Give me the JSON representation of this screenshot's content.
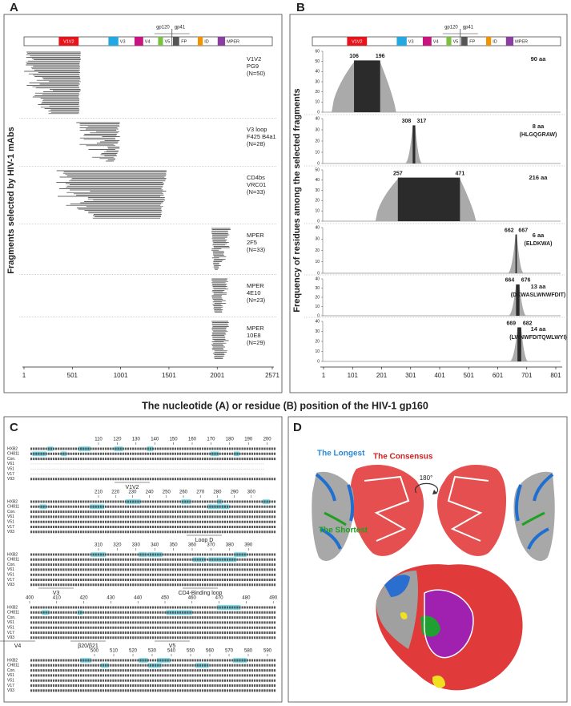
{
  "figure": {
    "xlabel": "The nucleotide (A) or residue (B) position of the HIV-1 gp160",
    "genome": {
      "regions": [
        "V1V2",
        "V3",
        "V4",
        "V5",
        "ID",
        "MPER"
      ],
      "gp120": "gp120",
      "gp41": "gp41",
      "fp": "FP"
    },
    "A": {
      "label": "A",
      "ylabel": "Fragments selected by HIV-1 mAbs",
      "xticks": [
        1,
        501,
        1001,
        1501,
        2001,
        2571
      ],
      "xlim": [
        1,
        2571
      ],
      "groups": [
        {
          "epitope": "V1V2",
          "mab": "PG9",
          "n": "(N=50)"
        },
        {
          "epitope": "V3 loop",
          "mab": "F425 B4a1",
          "n": "(N=28)"
        },
        {
          "epitope": "CD4bs",
          "mab": "VRC01",
          "n": "(N=33)"
        },
        {
          "epitope": "MPER",
          "mab": "2F5",
          "n": "(N=33)"
        },
        {
          "epitope": "MPER",
          "mab": "4E10",
          "n": "(N=23)"
        },
        {
          "epitope": "MPER",
          "mab": "10E8",
          "n": "(N=29)"
        }
      ]
    },
    "B": {
      "label": "B",
      "ylabel": "Frequency of residues among the selected fragments",
      "xticks": [
        1,
        101,
        201,
        301,
        401,
        501,
        601,
        701,
        801
      ],
      "xlim": [
        1,
        801
      ],
      "panels": [
        {
          "start": 106,
          "end": 196,
          "length": "90 aa",
          "ylim": [
            0,
            60
          ],
          "yticks": [
            0,
            10,
            20,
            30,
            40,
            50,
            60
          ]
        },
        {
          "start": 308,
          "end": 317,
          "length": "8 aa",
          "peptide": "(HLGQGRAW)",
          "ylim": [
            0,
            40
          ],
          "yticks": [
            0,
            10,
            20,
            30,
            40
          ]
        },
        {
          "start": 257,
          "end": 471,
          "length": "216 aa",
          "ylim": [
            0,
            50
          ],
          "yticks": [
            0,
            10,
            20,
            30,
            40,
            50
          ]
        },
        {
          "start": 662,
          "end": 667,
          "length": "6 aa",
          "peptide": "(ELDKWA)",
          "ylim": [
            0,
            40
          ],
          "yticks": [
            0,
            10,
            20,
            30,
            40
          ]
        },
        {
          "start": 664,
          "end": 676,
          "length": "13 aa",
          "peptide": "(DKWASLWNWFDIT)",
          "ylim": [
            0,
            40
          ],
          "yticks": [
            0,
            10,
            20,
            30,
            40
          ]
        },
        {
          "start": 669,
          "end": 682,
          "length": "14 aa",
          "peptide": "(LWNWFDITQWLWYI)",
          "ylim": [
            0,
            40
          ],
          "yticks": [
            0,
            10,
            20,
            30,
            40
          ]
        }
      ]
    },
    "C": {
      "label": "C",
      "sequences": [
        "HXB2",
        "CH811",
        "Con.",
        "V61",
        "V51",
        "V17",
        "V93"
      ],
      "blocks": [
        {
          "positions": [
            110,
            120,
            130,
            140,
            150,
            160,
            170,
            180,
            190,
            200
          ],
          "regions": [
            "V1V2"
          ]
        },
        {
          "positions": [
            210,
            220,
            230,
            240,
            250,
            260,
            270,
            280,
            290,
            300
          ],
          "regions": [
            "Loop D"
          ]
        },
        {
          "positions": [
            310,
            320,
            330,
            340,
            350,
            360,
            370,
            380,
            390
          ],
          "regions": [
            "V3",
            "CD4-Binding loop"
          ]
        },
        {
          "positions": [
            400,
            410,
            420,
            430,
            440,
            450,
            460,
            470,
            480,
            490
          ],
          "regions": [
            "V4",
            "β20/β21",
            "V5"
          ]
        },
        {
          "positions": [
            500,
            510,
            520,
            530,
            540,
            550,
            560,
            570,
            580,
            590
          ],
          "regions": []
        }
      ]
    },
    "D": {
      "label": "D",
      "longest": "The Longest",
      "consensus": "The Consensus",
      "shortest": "The Shortest",
      "rotation": "180°"
    }
  }
}
